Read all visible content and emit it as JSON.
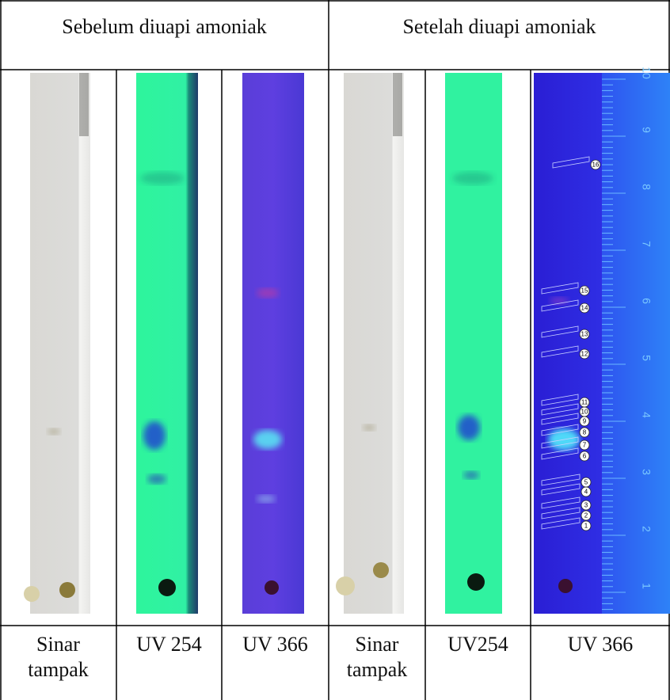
{
  "header": {
    "left": "Sebelum diuapi amoniak",
    "right": "Setelah diuapi amoniak"
  },
  "labels": [
    "Sinar tampak",
    "UV 254",
    "UV 366",
    "Sinar tampak",
    "UV254",
    "UV 366"
  ],
  "spot_labels": [
    1,
    2,
    3,
    4,
    5,
    6,
    7,
    8,
    9,
    10,
    11,
    12,
    13,
    14,
    15,
    16
  ],
  "ruler_labels": [
    1,
    2,
    3,
    4,
    5,
    6,
    7,
    8,
    9,
    10
  ]
}
